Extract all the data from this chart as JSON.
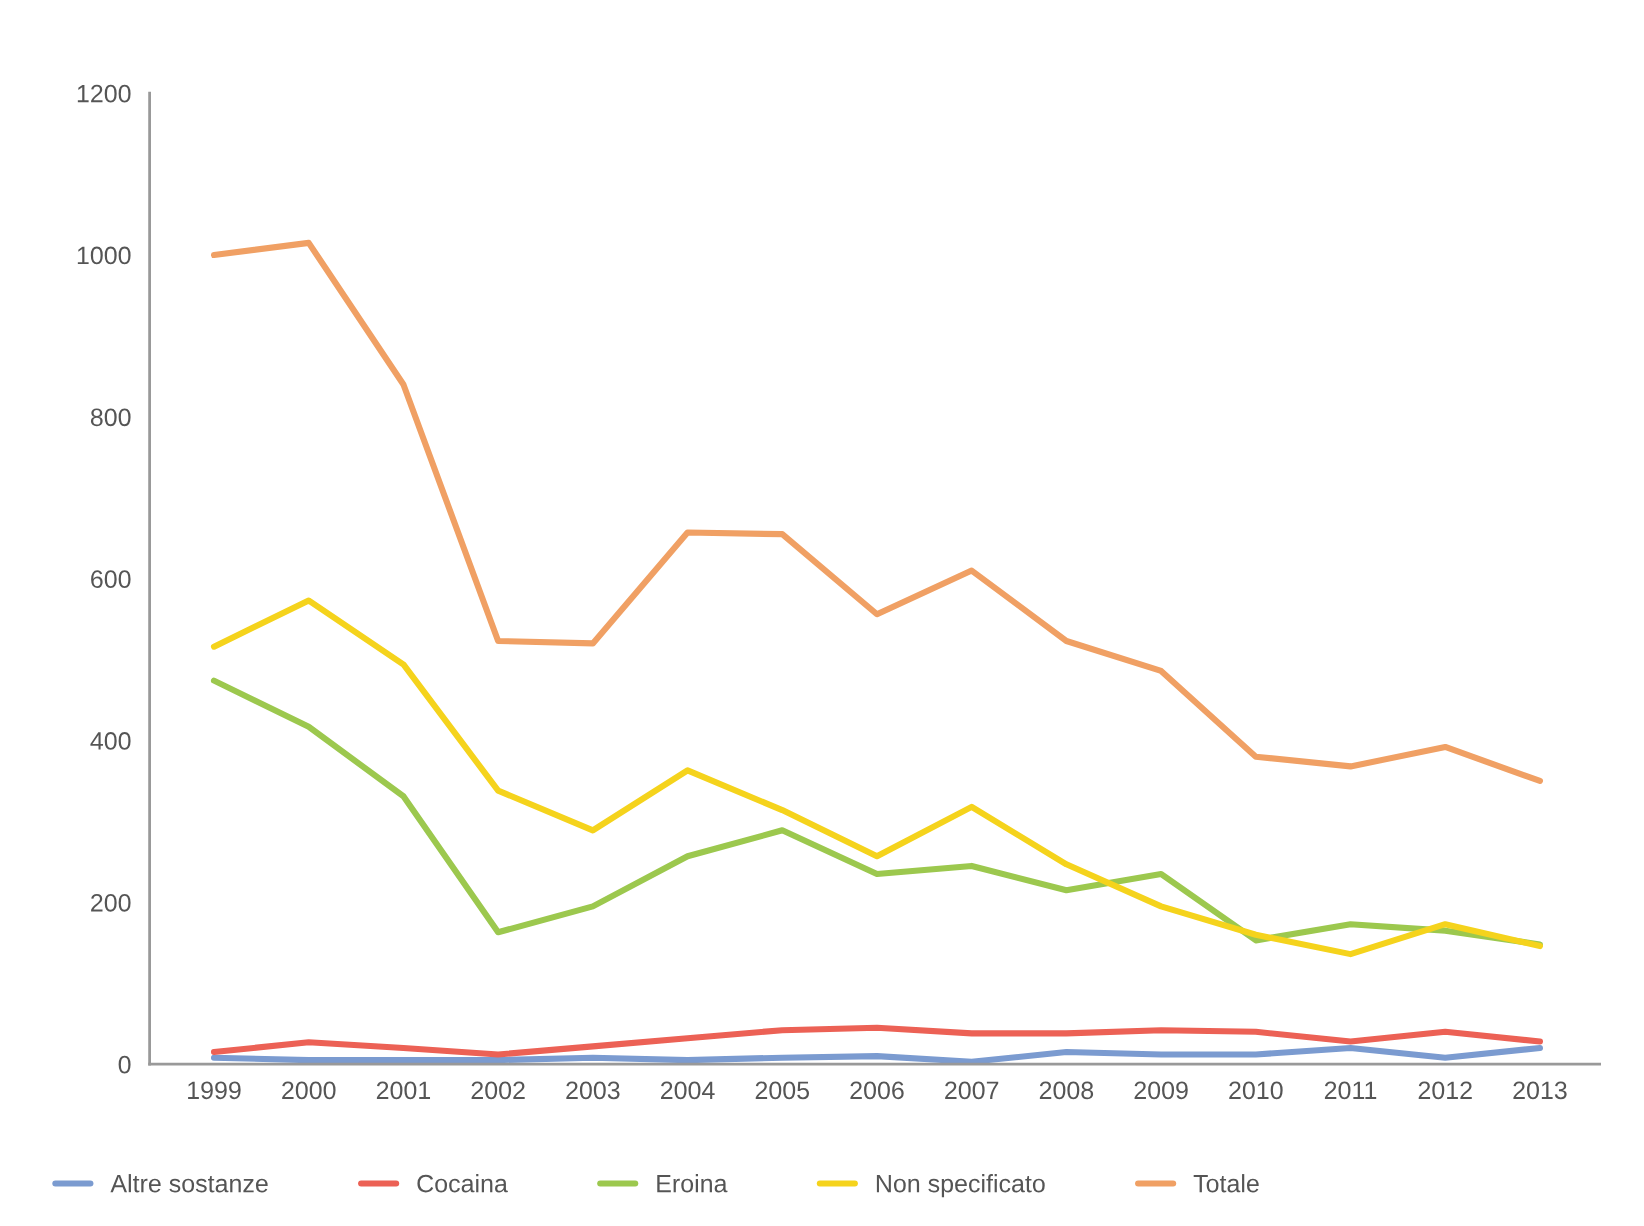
{
  "chart_data": {
    "type": "line",
    "categories": [
      "1999",
      "2000",
      "2001",
      "2002",
      "2003",
      "2004",
      "2005",
      "2006",
      "2007",
      "2008",
      "2009",
      "2010",
      "2011",
      "2012",
      "2013"
    ],
    "series": [
      {
        "name": "Altre sostanze",
        "color": "#7b9bd0",
        "values": [
          8,
          5,
          5,
          5,
          8,
          5,
          8,
          10,
          3,
          15,
          12,
          12,
          20,
          8,
          20
        ]
      },
      {
        "name": "Cocaina",
        "color": "#ec6155",
        "values": [
          15,
          27,
          20,
          12,
          22,
          32,
          42,
          45,
          38,
          38,
          42,
          40,
          28,
          40,
          28
        ]
      },
      {
        "name": "Eroina",
        "color": "#9cc84e",
        "values": [
          474,
          417,
          331,
          163,
          195,
          257,
          289,
          235,
          245,
          215,
          235,
          153,
          173,
          165,
          148
        ]
      },
      {
        "name": "Non specificato",
        "color": "#f5d31c",
        "values": [
          516,
          573,
          494,
          338,
          289,
          363,
          314,
          257,
          318,
          247,
          195,
          160,
          136,
          173,
          146
        ]
      },
      {
        "name": "Totale",
        "color": "#f0a064",
        "values": [
          1000,
          1015,
          840,
          523,
          520,
          657,
          655,
          556,
          610,
          523,
          486,
          380,
          368,
          392,
          350
        ]
      }
    ],
    "ylim": [
      0,
      1200
    ],
    "yticks": [
      0,
      200,
      400,
      600,
      800,
      1000,
      1200
    ],
    "grid": false,
    "legend": "bottom",
    "marker": "none",
    "line_style": "solid"
  }
}
